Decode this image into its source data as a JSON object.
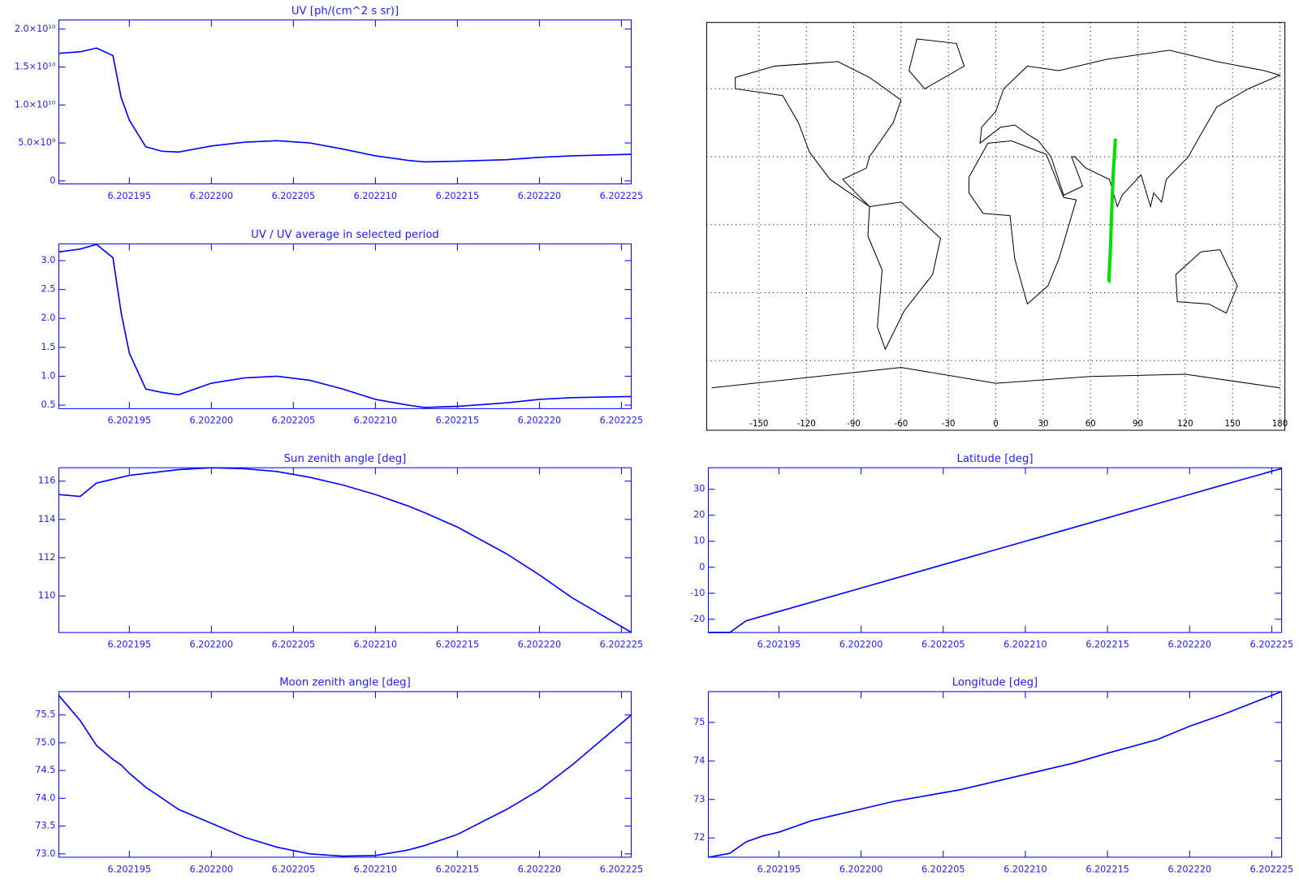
{
  "chart_data": [
    {
      "type": "line",
      "title": "UV [ph/(cm^2 s sr)]",
      "color": "#0000ff",
      "x": [
        6.2021907,
        6.202192,
        6.202193,
        6.202194,
        6.2021945,
        6.202195,
        6.202196,
        6.202197,
        6.202198,
        6.2022,
        6.202202,
        6.202204,
        6.202206,
        6.202208,
        6.20221,
        6.202212,
        6.202213,
        6.202215,
        6.202218,
        6.20222,
        6.202222,
        6.2022256
      ],
      "values": [
        16800000000,
        17000000000,
        17500000000,
        16500000000,
        11000000000,
        8000000000,
        4500000000,
        3900000000,
        3800000000,
        4600000000,
        5100000000,
        5300000000,
        5000000000,
        4200000000,
        3300000000,
        2700000000,
        2500000000,
        2600000000,
        2800000000,
        3100000000,
        3300000000,
        3500000000
      ],
      "xlim": [
        6.2021907,
        6.2022256
      ],
      "xticks": [
        6.202195,
        {
          "value": 6.2022,
          "label": "6.202200"
        },
        6.202205,
        {
          "value": 6.20221,
          "label": "6.202210"
        },
        6.202215,
        {
          "value": 6.20222,
          "label": "6.202220"
        },
        6.202225
      ],
      "ylim": [
        -400000000,
        21200000000
      ],
      "yticks": [
        0,
        {
          "value": 5000000000,
          "label": "5.0×10⁹"
        },
        {
          "value": 10000000000,
          "label": "1.0×10¹⁰"
        },
        {
          "value": 15000000000,
          "label": "1.5×10¹⁰"
        },
        {
          "value": 20000000000,
          "label": "2.0×10¹⁰"
        }
      ]
    },
    {
      "type": "line",
      "title": "UV / UV average in selected period",
      "color": "#0000ff",
      "x": [
        6.2021907,
        6.202192,
        6.202193,
        6.202194,
        6.2021945,
        6.202195,
        6.202196,
        6.202197,
        6.202198,
        6.2022,
        6.202202,
        6.202204,
        6.202206,
        6.202208,
        6.20221,
        6.202212,
        6.202213,
        6.202215,
        6.202218,
        6.20222,
        6.202222,
        6.2022256
      ],
      "values": [
        3.15,
        3.2,
        3.28,
        3.05,
        2.1,
        1.4,
        0.78,
        0.72,
        0.68,
        0.88,
        0.97,
        1.0,
        0.93,
        0.78,
        0.6,
        0.5,
        0.46,
        0.48,
        0.54,
        0.6,
        0.63,
        0.65
      ],
      "xlim": [
        6.2021907,
        6.2022256
      ],
      "xticks": [
        6.202195,
        {
          "value": 6.2022,
          "label": "6.202200"
        },
        6.202205,
        {
          "value": 6.20221,
          "label": "6.202210"
        },
        6.202215,
        {
          "value": 6.20222,
          "label": "6.202220"
        },
        6.202225
      ],
      "ylim": [
        0.44,
        3.29
      ],
      "yticks": [
        0.5,
        {
          "value": 1,
          "label": "1.0"
        },
        1.5,
        {
          "value": 2,
          "label": "2.0"
        },
        2.5,
        {
          "value": 3,
          "label": "3.0"
        }
      ]
    },
    {
      "type": "map",
      "track_color": "#00e000",
      "grid": true,
      "xlim": [
        -180,
        180
      ],
      "ylim": [
        -90,
        90
      ],
      "xticks": [
        -150,
        -120,
        -90,
        -60,
        -30,
        0,
        30,
        60,
        90,
        120,
        150,
        180
      ],
      "yticks": [
        -60,
        -30,
        0,
        30,
        60
      ]
    },
    {
      "type": "line",
      "title": "Sun zenith angle [deg]",
      "color": "#0000ff",
      "x": [
        6.2021907,
        6.202192,
        6.202193,
        6.202194,
        6.2021945,
        6.202195,
        6.202196,
        6.202197,
        6.202198,
        6.2022,
        6.202202,
        6.202204,
        6.202206,
        6.202208,
        6.20221,
        6.202212,
        6.202213,
        6.202215,
        6.202218,
        6.20222,
        6.202222,
        6.2022256
      ],
      "values": [
        115.3,
        115.2,
        115.9,
        116.1,
        116.2,
        116.3,
        116.4,
        116.5,
        116.6,
        116.7,
        116.65,
        116.5,
        116.2,
        115.8,
        115.3,
        114.7,
        114.35,
        113.6,
        112.2,
        111.1,
        109.9,
        108.1
      ],
      "xlim": [
        6.2021907,
        6.2022256
      ],
      "xticks": [
        6.202195,
        {
          "value": 6.2022,
          "label": "6.202200"
        },
        6.202205,
        {
          "value": 6.20221,
          "label": "6.202210"
        },
        6.202215,
        {
          "value": 6.20222,
          "label": "6.202220"
        },
        6.202225
      ],
      "ylim": [
        108.09,
        116.7
      ],
      "yticks": [
        110,
        112,
        114,
        116
      ]
    },
    {
      "type": "line",
      "title": "Latitude [deg]",
      "color": "#0000ff",
      "x": [
        6.2021907,
        6.202192,
        6.202193,
        6.202194,
        6.2021945,
        6.202195,
        6.202196,
        6.202197,
        6.202198,
        6.2022,
        6.202202,
        6.202204,
        6.202206,
        6.202208,
        6.20221,
        6.202212,
        6.202213,
        6.202215,
        6.202218,
        6.20222,
        6.202222,
        6.2022256
      ],
      "values": [
        -25.1,
        -25.1,
        -20.6,
        -18.8,
        -17.9,
        -17.0,
        -15.2,
        -13.4,
        -11.6,
        -8.0,
        -4.4,
        -0.8,
        2.8,
        6.4,
        10.0,
        13.6,
        15.4,
        19.0,
        24.4,
        28.0,
        31.6,
        38.0
      ],
      "xlim": [
        6.2021907,
        6.2022256
      ],
      "xticks": [
        6.202195,
        {
          "value": 6.2022,
          "label": "6.202200"
        },
        6.202205,
        {
          "value": 6.20221,
          "label": "6.202210"
        },
        6.202215,
        {
          "value": 6.20222,
          "label": "6.202220"
        },
        6.202225
      ],
      "ylim": [
        -25.1,
        38.3
      ],
      "yticks": [
        -20,
        -10,
        0,
        10,
        20,
        30
      ]
    },
    {
      "type": "line",
      "title": "Moon zenith angle [deg]",
      "color": "#0000ff",
      "x": [
        6.2021907,
        6.202192,
        6.202193,
        6.202194,
        6.2021945,
        6.202195,
        6.202196,
        6.202197,
        6.202198,
        6.2022,
        6.202202,
        6.202204,
        6.202206,
        6.202208,
        6.20221,
        6.202212,
        6.202213,
        6.202215,
        6.202218,
        6.20222,
        6.202222,
        6.2022256
      ],
      "values": [
        75.85,
        75.4,
        74.95,
        74.7,
        74.6,
        74.45,
        74.2,
        74.0,
        73.8,
        73.55,
        73.3,
        73.12,
        73.0,
        72.96,
        72.97,
        73.07,
        73.15,
        73.35,
        73.8,
        74.15,
        74.6,
        75.5
      ],
      "xlim": [
        6.2021907,
        6.2022256
      ],
      "xticks": [
        6.202195,
        {
          "value": 6.2022,
          "label": "6.202200"
        },
        6.202205,
        {
          "value": 6.20221,
          "label": "6.202210"
        },
        6.202215,
        {
          "value": 6.20222,
          "label": "6.202220"
        },
        6.202225
      ],
      "ylim": [
        72.94,
        75.92
      ],
      "yticks": [
        {
          "value": 73,
          "label": "73.0"
        },
        73.5,
        {
          "value": 74,
          "label": "74.0"
        },
        74.5,
        {
          "value": 75,
          "label": "75.0"
        },
        75.5
      ]
    },
    {
      "type": "line",
      "title": "Longitude [deg]",
      "color": "#0000ff",
      "x": [
        6.2021907,
        6.202192,
        6.202193,
        6.202194,
        6.2021945,
        6.202195,
        6.202196,
        6.202197,
        6.202198,
        6.2022,
        6.202202,
        6.202204,
        6.202206,
        6.202208,
        6.20221,
        6.202212,
        6.202213,
        6.202215,
        6.202218,
        6.20222,
        6.202222,
        6.2022256
      ],
      "values": [
        71.5,
        71.6,
        71.9,
        72.05,
        72.1,
        72.15,
        72.3,
        72.45,
        72.55,
        72.75,
        72.95,
        73.1,
        73.25,
        73.45,
        73.65,
        73.85,
        73.95,
        74.2,
        74.55,
        74.9,
        75.2,
        75.8
      ],
      "xlim": [
        6.2021907,
        6.2022256
      ],
      "xticks": [
        6.202195,
        {
          "value": 6.2022,
          "label": "6.202200"
        },
        6.202205,
        {
          "value": 6.20221,
          "label": "6.202210"
        },
        6.202215,
        {
          "value": 6.20222,
          "label": "6.202220"
        },
        6.202225
      ],
      "ylim": [
        71.5,
        75.8
      ],
      "yticks": [
        72,
        73,
        74,
        75
      ]
    }
  ]
}
